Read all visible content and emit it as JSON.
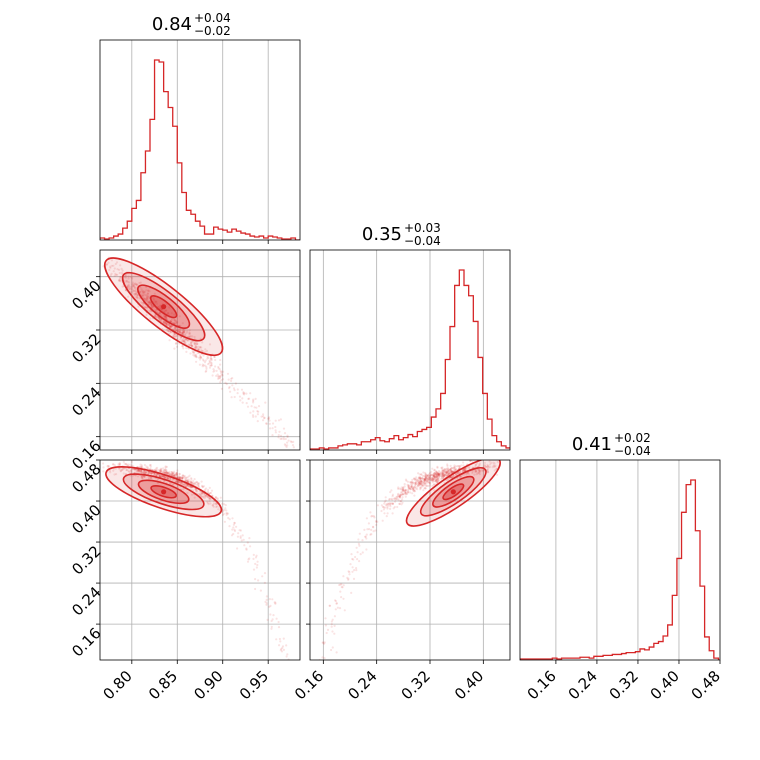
{
  "chart_data": {
    "type": "corner",
    "color": "#d62728",
    "params": [
      {
        "median": "0.84",
        "plus": "+0.04",
        "minus": "−0.02",
        "range": [
          0.765,
          0.985
        ],
        "ticks": [
          0.8,
          0.85,
          0.9,
          0.95
        ],
        "tick_labels": [
          "0.80",
          "0.85",
          "0.90",
          "0.95"
        ]
      },
      {
        "median": "0.35",
        "plus": "+0.03",
        "minus": "−0.04",
        "range": [
          0.14,
          0.44
        ],
        "ticks": [
          0.16,
          0.24,
          0.32,
          0.4
        ],
        "tick_labels": [
          "0.16",
          "0.24",
          "0.32",
          "0.40"
        ]
      },
      {
        "median": "0.41",
        "plus": "+0.02",
        "minus": "−0.04",
        "range": [
          0.09,
          0.48
        ],
        "ticks": [
          0.16,
          0.24,
          0.32,
          0.4,
          0.48
        ],
        "tick_labels": [
          "0.16",
          "0.24",
          "0.32",
          "0.40",
          "0.48"
        ]
      }
    ],
    "histograms": [
      {
        "x": [
          0.765,
          0.77,
          0.775,
          0.78,
          0.785,
          0.79,
          0.795,
          0.8,
          0.805,
          0.81,
          0.815,
          0.82,
          0.825,
          0.83,
          0.835,
          0.84,
          0.845,
          0.85,
          0.855,
          0.86,
          0.865,
          0.87,
          0.875,
          0.88,
          0.885,
          0.89,
          0.895,
          0.9,
          0.905,
          0.91,
          0.915,
          0.92,
          0.925,
          0.93,
          0.935,
          0.94,
          0.945,
          0.95,
          0.955,
          0.96,
          0.965,
          0.97,
          0.975,
          0.98
        ],
        "counts": [
          2,
          1,
          2,
          4,
          6,
          12,
          19,
          32,
          40,
          68,
          90,
          122,
          182,
          180,
          150,
          134,
          115,
          78,
          48,
          30,
          26,
          19,
          14,
          6,
          6,
          13,
          11,
          10,
          8,
          11,
          9,
          7,
          6,
          4,
          3,
          4,
          2,
          4,
          3,
          2,
          1,
          1,
          2,
          0
        ]
      },
      {
        "x": [
          0.14,
          0.147,
          0.154,
          0.161,
          0.168,
          0.175,
          0.182,
          0.189,
          0.196,
          0.203,
          0.21,
          0.217,
          0.224,
          0.231,
          0.238,
          0.245,
          0.252,
          0.259,
          0.266,
          0.273,
          0.28,
          0.287,
          0.294,
          0.301,
          0.308,
          0.315,
          0.322,
          0.329,
          0.336,
          0.343,
          0.35,
          0.357,
          0.364,
          0.371,
          0.378,
          0.385,
          0.392,
          0.399,
          0.406,
          0.413,
          0.42,
          0.427,
          0.434
        ],
        "counts": [
          1,
          1,
          2,
          1,
          2,
          2,
          4,
          5,
          6,
          6,
          5,
          8,
          8,
          10,
          12,
          9,
          8,
          11,
          14,
          10,
          12,
          15,
          13,
          18,
          20,
          22,
          32,
          40,
          55,
          88,
          120,
          160,
          175,
          160,
          150,
          125,
          90,
          55,
          30,
          14,
          8,
          4,
          2
        ]
      },
      {
        "x": [
          0.09,
          0.099,
          0.108,
          0.117,
          0.126,
          0.135,
          0.144,
          0.153,
          0.162,
          0.171,
          0.18,
          0.189,
          0.198,
          0.207,
          0.216,
          0.225,
          0.234,
          0.243,
          0.252,
          0.261,
          0.27,
          0.279,
          0.288,
          0.297,
          0.306,
          0.315,
          0.324,
          0.333,
          0.342,
          0.351,
          0.36,
          0.369,
          0.378,
          0.387,
          0.396,
          0.405,
          0.414,
          0.423,
          0.432,
          0.441,
          0.45,
          0.459,
          0.468
        ],
        "counts": [
          1,
          1,
          1,
          1,
          1,
          1,
          1,
          2,
          1,
          2,
          2,
          2,
          2,
          3,
          3,
          2,
          4,
          4,
          5,
          5,
          6,
          6,
          7,
          8,
          8,
          9,
          12,
          11,
          14,
          18,
          20,
          26,
          38,
          70,
          110,
          160,
          190,
          195,
          140,
          80,
          25,
          10,
          2
        ]
      }
    ]
  }
}
